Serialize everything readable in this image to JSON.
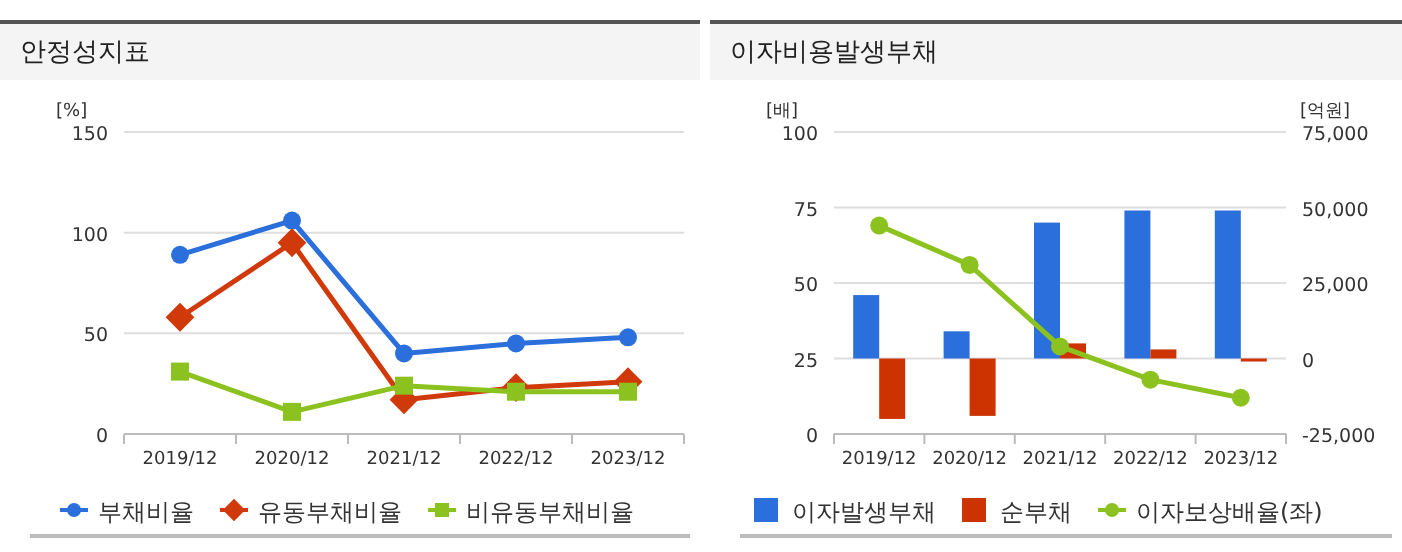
{
  "chart_data": [
    {
      "type": "line",
      "title": "안정성지표",
      "ylabel": "[%]",
      "categories": [
        "2019/12",
        "2020/12",
        "2021/12",
        "2022/12",
        "2023/12"
      ],
      "ylim": [
        0,
        150
      ],
      "yticks": [
        0,
        50,
        100,
        150
      ],
      "grid": "y",
      "legend": "bottom",
      "series": [
        {
          "name": "부채비율",
          "color": "#2a6fdb",
          "marker": "circle",
          "values": [
            89,
            106,
            40,
            45,
            48
          ]
        },
        {
          "name": "유동부채비율",
          "color": "#d03a0a",
          "marker": "diamond",
          "values": [
            58,
            95,
            17,
            23,
            26
          ]
        },
        {
          "name": "비유동부채비율",
          "color": "#8cc21f",
          "marker": "square",
          "values": [
            31,
            11,
            24,
            21,
            21
          ]
        }
      ]
    },
    {
      "type": "bar",
      "title": "이자비용발생부채",
      "ylabel": "[배]",
      "y2label": "[억원]",
      "categories": [
        "2019/12",
        "2020/12",
        "2021/12",
        "2022/12",
        "2023/12"
      ],
      "ylim": [
        0,
        100
      ],
      "yticks": [
        0,
        25,
        50,
        75,
        100
      ],
      "y2lim": [
        -25000,
        75000
      ],
      "y2ticks": [
        {
          "value": -25000,
          "label": "-25,000"
        },
        {
          "value": 0,
          "label": "0"
        },
        {
          "value": 25000,
          "label": "25,000"
        },
        {
          "value": 50000,
          "label": "50,000"
        },
        {
          "value": 75000,
          "label": "75,000"
        }
      ],
      "grid": "y",
      "legend": "bottom",
      "series": [
        {
          "name": "이자발생부채",
          "type": "bar",
          "axis": "y2",
          "color": "#2a6fdb",
          "values": [
            21000,
            9000,
            45000,
            49000,
            49000
          ]
        },
        {
          "name": "순부채",
          "type": "bar",
          "axis": "y2",
          "color": "#cc3300",
          "values": [
            -20000,
            -19000,
            5000,
            3000,
            -1000
          ]
        },
        {
          "name": "이자보상배율(좌)",
          "type": "line",
          "axis": "y",
          "color": "#8cc21f",
          "marker": "circle",
          "values": [
            69,
            56,
            29,
            18,
            12
          ]
        }
      ]
    }
  ]
}
